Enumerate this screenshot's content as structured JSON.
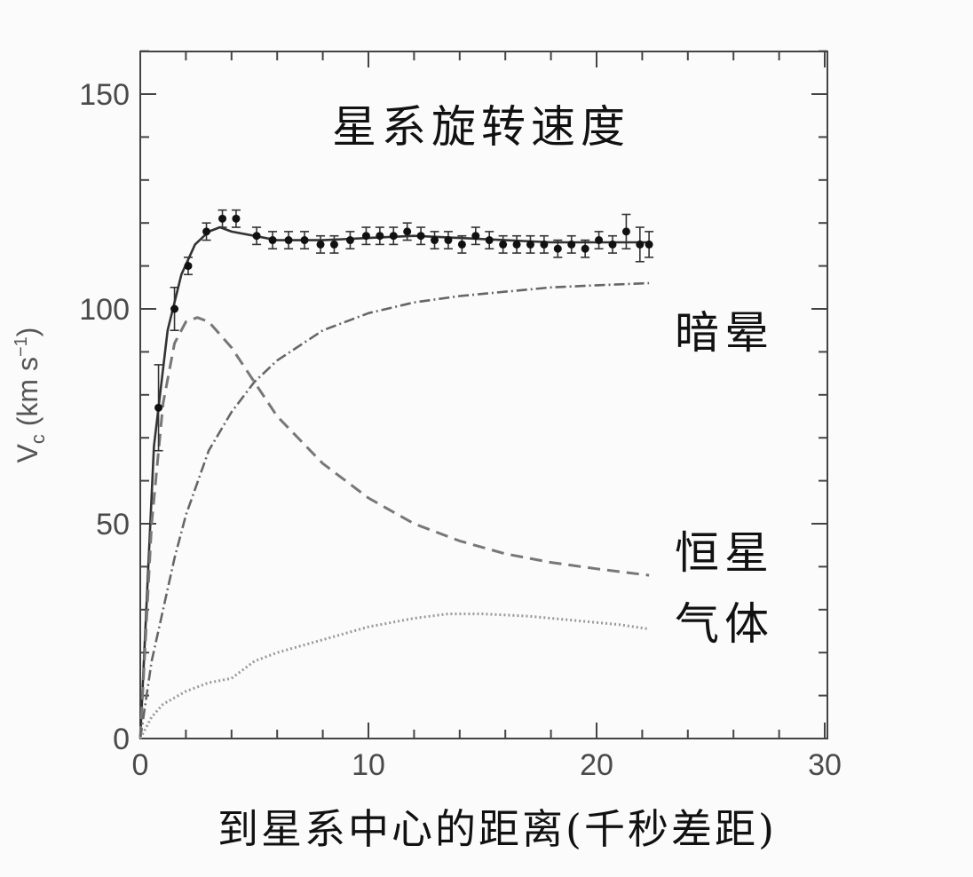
{
  "chart_data": {
    "type": "line",
    "title": "星系旋转速度",
    "xlabel": "到星系中心的距离(千秒差距)",
    "ylabel": "V",
    "ylabel_sub": "c",
    "ylabel_units": " (km s",
    "ylabel_units_sup": "−1",
    "ylabel_units_close": ")",
    "xlim": [
      0,
      30
    ],
    "ylim": [
      0,
      160
    ],
    "x_ticks": [
      0,
      10,
      20,
      30
    ],
    "y_ticks": [
      0,
      50,
      100,
      150
    ],
    "grid": false,
    "series_labels": {
      "dark_halo": "暗晕",
      "stars": "恒星",
      "gas": "气体"
    },
    "observed": {
      "x": [
        0.8,
        1.5,
        2.1,
        2.9,
        3.6,
        4.2,
        5.1,
        5.8,
        6.5,
        7.2,
        7.9,
        8.5,
        9.2,
        9.9,
        10.5,
        11.1,
        11.7,
        12.3,
        12.9,
        13.5,
        14.1,
        14.7,
        15.3,
        15.9,
        16.5,
        17.1,
        17.7,
        18.3,
        18.9,
        19.5,
        20.1,
        20.7,
        21.3,
        21.9,
        22.3
      ],
      "y": [
        77,
        100,
        110,
        118,
        121,
        121,
        117,
        116,
        116,
        116,
        115,
        115,
        116,
        117,
        117,
        117,
        118,
        117,
        116,
        116,
        115,
        117,
        116,
        115,
        115,
        115,
        115,
        114,
        115,
        114,
        116,
        115,
        118,
        115,
        115
      ],
      "err": [
        10,
        5,
        2,
        2,
        2,
        2,
        2,
        2,
        2,
        2,
        2,
        2,
        2,
        2,
        2,
        2,
        2,
        2,
        2,
        2,
        2,
        2,
        2,
        2,
        2,
        2,
        2,
        2,
        2,
        2,
        2,
        2,
        4,
        4,
        3
      ]
    },
    "series": [
      {
        "style": "solid",
        "x": [
          0,
          0.6,
          1.2,
          1.8,
          2.4,
          3.0,
          3.5,
          4.0,
          5.0,
          6.0,
          8.0,
          10.0,
          12.0,
          14.0,
          16.0,
          18.0,
          20.0,
          22.3
        ],
        "y": [
          0,
          68,
          95,
          108,
          115,
          118,
          119,
          118,
          117,
          116,
          116,
          116.5,
          117,
          116.5,
          116,
          115.5,
          115.5,
          115.5
        ]
      },
      {
        "style": "dashed",
        "x": [
          0,
          0.5,
          1.0,
          1.5,
          2.0,
          2.5,
          3.0,
          4.0,
          5.0,
          6.0,
          8.0,
          10.0,
          12.0,
          14.0,
          16.0,
          18.0,
          20.0,
          22.3
        ],
        "y": [
          0,
          50,
          78,
          92,
          97,
          98,
          97,
          91,
          83,
          75,
          64,
          56,
          50,
          46,
          43,
          41,
          39.5,
          38
        ]
      },
      {
        "style": "dashdot",
        "x": [
          0,
          0.5,
          1.0,
          1.5,
          2.0,
          3.0,
          4.0,
          5.0,
          6.0,
          8.0,
          10.0,
          12.0,
          14.0,
          16.0,
          18.0,
          20.0,
          22.3
        ],
        "y": [
          0,
          18,
          30,
          42,
          52,
          67,
          76,
          83,
          88,
          95,
          99,
          101.5,
          103,
          104,
          105,
          105.5,
          106
        ]
      },
      {
        "style": "dotted",
        "x": [
          0,
          0.5,
          1.0,
          2.0,
          3.0,
          4.0,
          5.0,
          6.0,
          8.0,
          10.0,
          12.0,
          13.5,
          15.0,
          17.0,
          19.0,
          21.0,
          22.3
        ],
        "y": [
          0,
          5,
          8,
          11,
          13,
          14,
          18,
          20,
          23,
          26,
          28,
          29,
          29,
          28.5,
          27.5,
          26.5,
          25.5
        ]
      }
    ]
  }
}
